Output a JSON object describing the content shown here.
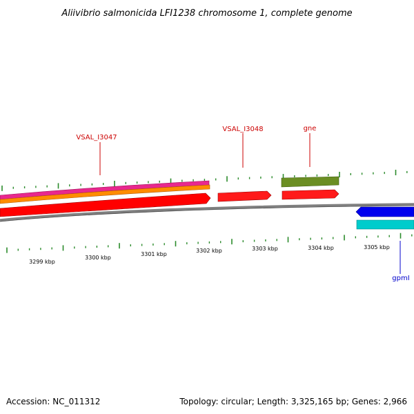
{
  "title": "Aliivibrio salmonicida LFI1238 chromosome 1, complete genome",
  "footer": {
    "accession": "Accession: NC_011312",
    "summary": "Topology: circular; Length: 3,325,165 bp; Genes: 2,966"
  },
  "colors": {
    "backbone": "#808080",
    "tick": "#2a8a2a",
    "label_forward": "#cc0000",
    "label_reverse": "#0000cc",
    "cds": "#ff0000",
    "gene_red": "#ff1a1a",
    "magenta": "#e8288e",
    "orange": "#ff8c00",
    "olive": "#6b8e23",
    "blue": "#0000ee",
    "cyan": "#00cccc"
  },
  "kbp_labels": [
    {
      "text": "3299 kbp",
      "kbp": 3299
    },
    {
      "text": "3300 kbp",
      "kbp": 3300
    },
    {
      "text": "3301 kbp",
      "kbp": 3301
    },
    {
      "text": "3302 kbp",
      "kbp": 3302
    },
    {
      "text": "3303 kbp",
      "kbp": 3303
    },
    {
      "text": "3304 kbp",
      "kbp": 3304
    },
    {
      "text": "3305 kbp",
      "kbp": 3305
    }
  ],
  "gene_labels": [
    {
      "id": "VSAL_I3047",
      "text": "VSAL_I3047",
      "strand": "forward"
    },
    {
      "id": "VSAL_I3048",
      "text": "VSAL_I3048",
      "strand": "forward"
    },
    {
      "id": "gne",
      "text": "gne",
      "strand": "forward"
    },
    {
      "id": "gpmI",
      "text": "gpmI",
      "strand": "reverse"
    }
  ]
}
